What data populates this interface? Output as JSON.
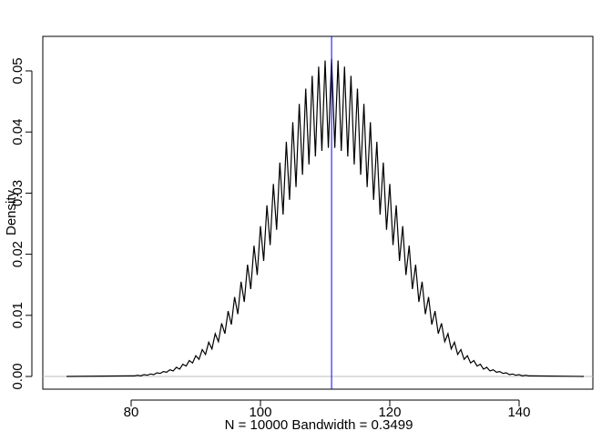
{
  "chart_data": {
    "type": "line",
    "xlabel": "N = 10000   Bandwidth = 0.3499",
    "ylabel": "Density",
    "x": [
      70,
      80,
      80.5,
      81,
      81.5,
      82,
      82.5,
      83,
      83.5,
      84,
      84.5,
      85,
      85.5,
      86,
      86.5,
      87,
      87.5,
      88,
      88.5,
      89,
      89.5,
      90,
      90.5,
      91,
      91.5,
      92,
      92.5,
      93,
      93.5,
      94,
      94.5,
      95,
      95.5,
      96,
      96.5,
      97,
      97.5,
      98,
      98.5,
      99,
      99.5,
      100,
      100.5,
      101,
      101.5,
      102,
      102.5,
      103,
      103.5,
      104,
      104.5,
      105,
      105.5,
      106,
      106.5,
      107,
      107.5,
      108,
      108.5,
      109,
      109.5,
      110,
      110.5,
      111,
      111.5,
      112,
      112.5,
      113,
      113.5,
      114,
      114.5,
      115,
      115.5,
      116,
      116.5,
      117,
      117.5,
      118,
      118.5,
      119,
      119.5,
      120,
      120.5,
      121,
      121.5,
      122,
      122.5,
      123,
      123.5,
      124,
      124.5,
      125,
      125.5,
      126,
      126.5,
      127,
      127.5,
      128,
      128.5,
      129,
      129.5,
      130,
      130.5,
      131,
      131.5,
      132,
      132.5,
      133,
      133.5,
      134,
      134.5,
      135,
      135.5,
      136,
      136.5,
      137,
      137.5,
      138,
      138.5,
      139,
      139.5,
      140,
      140.5,
      141,
      141.5,
      142,
      150
    ],
    "series": [
      {
        "color": "#000000",
        "values": [
          0,
          0.0001,
          0.0001,
          0.0002,
          0.0001,
          0.0003,
          0.0002,
          0.0004,
          0.0003,
          0.0006,
          0.0005,
          0.0008,
          0.0007,
          0.0011,
          0.0009,
          0.0015,
          0.0012,
          0.002,
          0.0017,
          0.0026,
          0.0022,
          0.0034,
          0.0028,
          0.0044,
          0.0036,
          0.0056,
          0.0045,
          0.007,
          0.0057,
          0.0087,
          0.007,
          0.0107,
          0.0085,
          0.013,
          0.0102,
          0.0155,
          0.0122,
          0.0183,
          0.0143,
          0.0214,
          0.0166,
          0.0246,
          0.0189,
          0.028,
          0.0215,
          0.0315,
          0.024,
          0.035,
          0.0265,
          0.0384,
          0.0289,
          0.0416,
          0.031,
          0.0446,
          0.033,
          0.0471,
          0.0347,
          0.0492,
          0.036,
          0.0507,
          0.0369,
          0.0517,
          0.0374,
          0.052,
          0.0374,
          0.0517,
          0.0369,
          0.0507,
          0.036,
          0.0492,
          0.0347,
          0.0471,
          0.033,
          0.0446,
          0.031,
          0.0416,
          0.0289,
          0.0384,
          0.0265,
          0.035,
          0.024,
          0.0315,
          0.0215,
          0.028,
          0.0189,
          0.0246,
          0.0166,
          0.0214,
          0.0143,
          0.0183,
          0.0122,
          0.0155,
          0.0102,
          0.013,
          0.0085,
          0.0107,
          0.007,
          0.0087,
          0.0057,
          0.007,
          0.0045,
          0.0056,
          0.0036,
          0.0044,
          0.0028,
          0.0034,
          0.0022,
          0.0026,
          0.0017,
          0.002,
          0.0012,
          0.0015,
          0.0009,
          0.0011,
          0.0007,
          0.0008,
          0.0005,
          0.0006,
          0.0003,
          0.0004,
          0.0002,
          0.0003,
          0.0001,
          0.0002,
          0.0001,
          0.0001,
          0
        ]
      }
    ],
    "xlim": [
      66.34,
      151.41
    ],
    "ylim": [
      -0.00208,
      0.05565
    ],
    "xticks": [
      80,
      100,
      120,
      140
    ],
    "yticks": [
      {
        "value": 0,
        "label": "0.00"
      },
      {
        "value": 0.01,
        "label": "0.01"
      },
      {
        "value": 0.02,
        "label": "0.02"
      },
      {
        "value": 0.03,
        "label": "0.03"
      },
      {
        "value": 0.04,
        "label": "0.04"
      },
      {
        "value": 0.05,
        "label": "0.05"
      }
    ],
    "hline": {
      "value": 0,
      "color": "#bebebe"
    },
    "vline": {
      "value": 111,
      "color": "#0000ff"
    }
  }
}
